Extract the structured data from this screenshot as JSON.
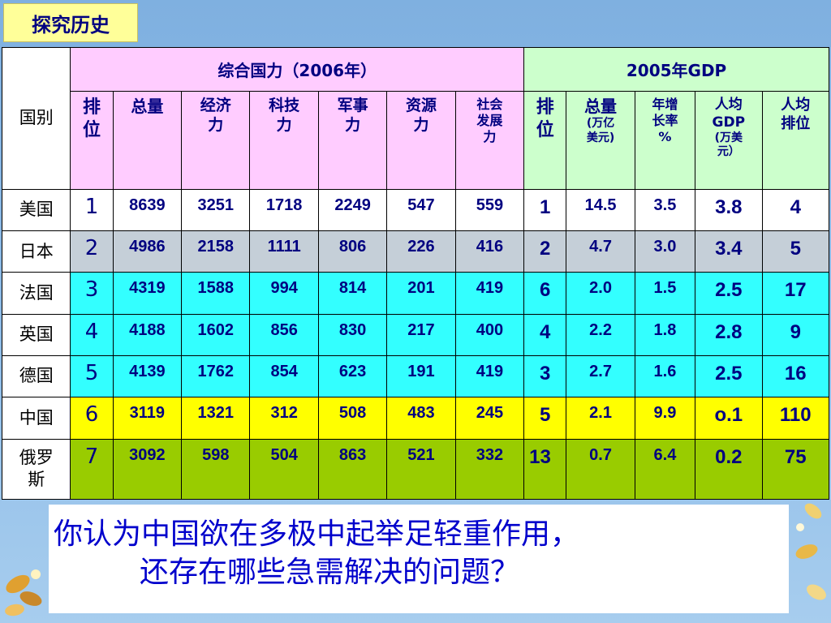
{
  "badge": {
    "label": "探究历史"
  },
  "table": {
    "country_header": "国别",
    "group_headers": {
      "power": "综合国力（2006年）",
      "gdp": "2005年GDP"
    },
    "sub_headers": {
      "power_rank": "排\n位",
      "power_total": "总量",
      "economy": "经济\n力",
      "tech": "科技\n力",
      "military": "军事\n力",
      "resource": "资源\n力",
      "social": "社会\n发展\n力",
      "gdp_rank": "排\n位",
      "gdp_total": "总量",
      "gdp_total_unit": "(万亿\n美元)",
      "growth": "年增\n长率\n%",
      "per_capita": "人均\nGDP",
      "per_capita_unit": "(万美\n元）",
      "per_capita_rank": "人均\n排位"
    },
    "rows": [
      {
        "country": "美国",
        "power_rank": "1",
        "total": "8639",
        "economy": "3251",
        "tech": "1718",
        "military": "2249",
        "resource": "547",
        "social": "559",
        "gdp_rank": "1",
        "gdp_total": "14.5",
        "growth": "3.5",
        "per_capita": "3.8",
        "per_capita_rank": "4"
      },
      {
        "country": "日本",
        "power_rank": "2",
        "total": "4986",
        "economy": "2158",
        "tech": "1111",
        "military": "806",
        "resource": "226",
        "social": "416",
        "gdp_rank": "2",
        "gdp_total": "4.7",
        "growth": "3.0",
        "per_capita": "3.4",
        "per_capita_rank": "5"
      },
      {
        "country": "法国",
        "power_rank": "3",
        "total": "4319",
        "economy": "1588",
        "tech": "994",
        "military": "814",
        "resource": "201",
        "social": "419",
        "gdp_rank": "6",
        "gdp_total": "2.0",
        "growth": "1.5",
        "per_capita": "2.5",
        "per_capita_rank": "17"
      },
      {
        "country": "英国",
        "power_rank": "4",
        "total": "4188",
        "economy": "1602",
        "tech": "856",
        "military": "830",
        "resource": "217",
        "social": "400",
        "gdp_rank": "4",
        "gdp_total": "2.2",
        "growth": "1.8",
        "per_capita": "2.8",
        "per_capita_rank": "9"
      },
      {
        "country": "德国",
        "power_rank": "5",
        "total": "4139",
        "economy": "1762",
        "tech": "854",
        "military": "623",
        "resource": "191",
        "social": "419",
        "gdp_rank": "3",
        "gdp_total": "2.7",
        "growth": "1.6",
        "per_capita": "2.5",
        "per_capita_rank": "16"
      },
      {
        "country": "中国",
        "power_rank": "6",
        "total": "3119",
        "economy": "1321",
        "tech": "312",
        "military": "508",
        "resource": "483",
        "social": "245",
        "gdp_rank": "5",
        "gdp_total": "2.1",
        "growth": "9.9",
        "per_capita": "o.1",
        "per_capita_rank": "110"
      },
      {
        "country": "俄罗\n斯",
        "power_rank": "7",
        "total": "3092",
        "economy": "598",
        "tech": "504",
        "military": "863",
        "resource": "521",
        "social": "332",
        "gdp_rank": "13",
        "gdp_total": "0.7",
        "growth": "6.4",
        "per_capita": "0.2",
        "per_capita_rank": "75"
      }
    ]
  },
  "question": {
    "line1": "你认为中国欲在多极中起举足轻重作用，",
    "line2": "还存在哪些急需解决的问题？"
  },
  "colors": {
    "background": "#8fbde8",
    "badge": "#ffff99",
    "header_pink": "#ffccff",
    "header_mint": "#ccffcc",
    "row_white": "#ffffff",
    "row_gray": "#c5cfd8",
    "row_cyan": "#33ffff",
    "row_yellow": "#ffff00",
    "row_green": "#99cc00",
    "text_navy": "#000080",
    "question_blue": "#0000cc"
  },
  "icons": [
    "leaf-decoration-icon",
    "flower-decoration-icon"
  ]
}
